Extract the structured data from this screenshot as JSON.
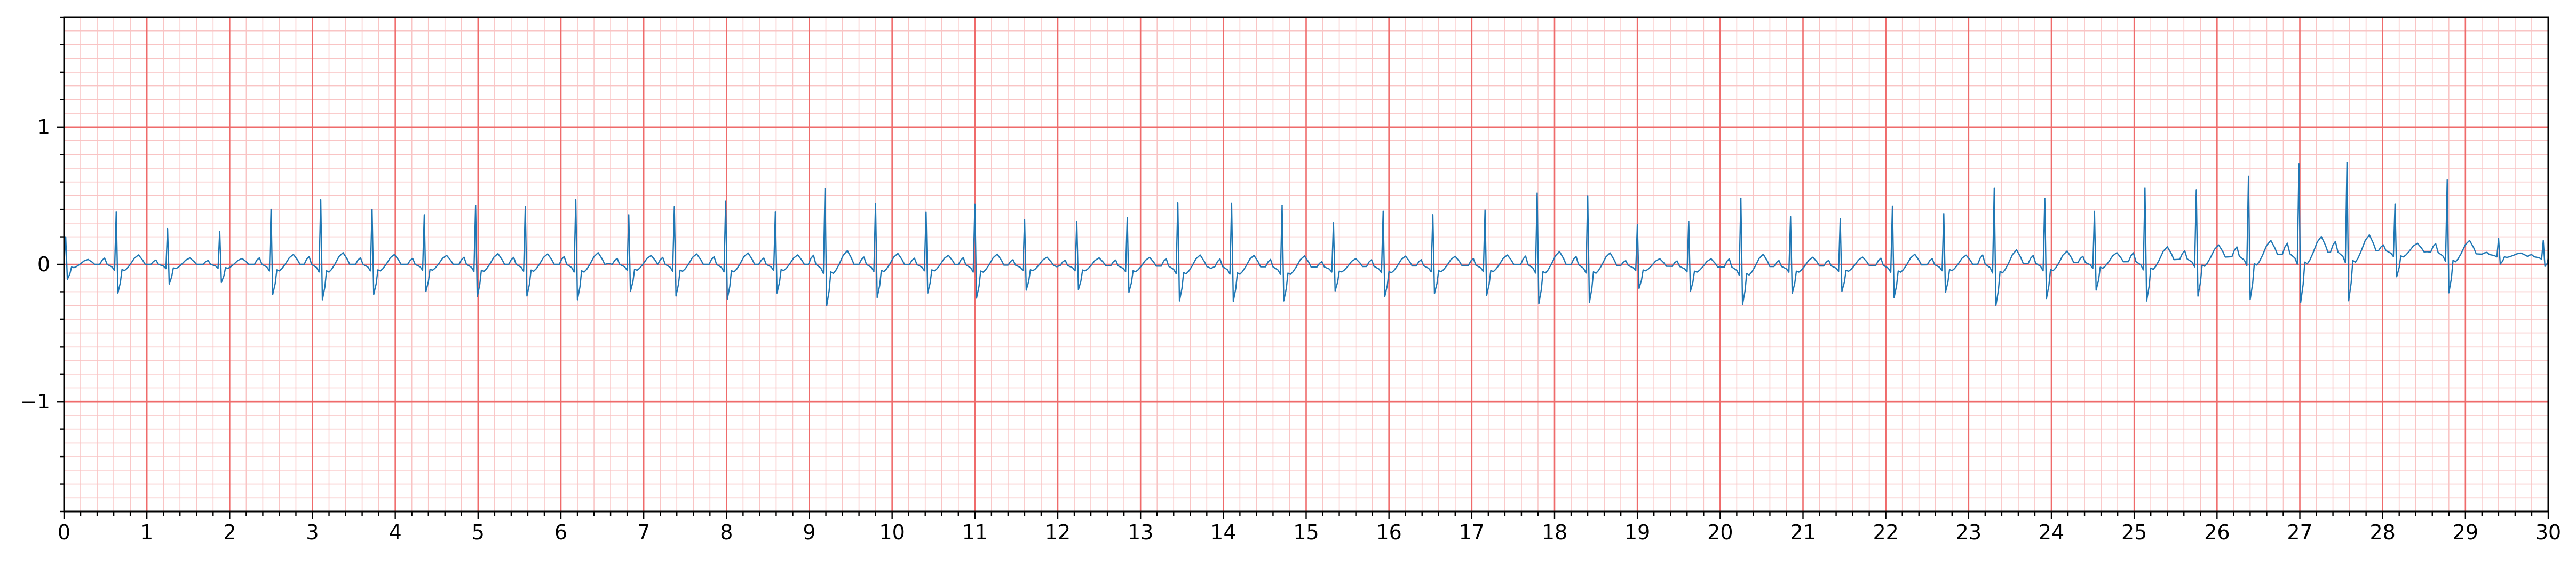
{
  "chart_data": {
    "type": "line",
    "title": "",
    "xlabel": "",
    "ylabel": "",
    "xlim": [
      0,
      30
    ],
    "ylim": [
      -1.8,
      1.8
    ],
    "grid": true,
    "x_ticks": [
      0,
      1,
      2,
      3,
      4,
      5,
      6,
      7,
      8,
      9,
      10,
      11,
      12,
      13,
      14,
      15,
      16,
      17,
      18,
      19,
      20,
      21,
      22,
      23,
      24,
      25,
      26,
      27,
      28,
      29,
      30
    ],
    "x_tick_labels": [
      "0",
      "1",
      "2",
      "3",
      "4",
      "5",
      "6",
      "7",
      "8",
      "9",
      "10",
      "11",
      "12",
      "13",
      "14",
      "15",
      "16",
      "17",
      "18",
      "19",
      "20",
      "21",
      "22",
      "23",
      "24",
      "25",
      "26",
      "27",
      "28",
      "29",
      "30"
    ],
    "y_ticks": [
      -1,
      0,
      1
    ],
    "y_tick_labels": [
      "−1",
      "0",
      "1"
    ],
    "colors": {
      "trace": "#1f77b4",
      "major_grid": "#ef6b6b",
      "minor_grid": "#f9c4c4",
      "axes": "#000000"
    },
    "beats": {
      "r_peak_times": [
        0.02,
        0.63,
        1.25,
        1.88,
        2.5,
        3.1,
        3.72,
        4.35,
        4.97,
        5.57,
        6.18,
        6.82,
        7.37,
        7.99,
        8.59,
        9.19,
        9.8,
        10.41,
        11.0,
        11.6,
        12.23,
        12.84,
        13.45,
        14.1,
        14.71,
        15.33,
        15.93,
        16.53,
        17.16,
        17.79,
        18.4,
        19.0,
        19.62,
        20.25,
        20.85,
        21.45,
        22.08,
        22.7,
        23.31,
        23.92,
        24.52,
        25.13,
        25.75,
        26.38,
        26.99,
        27.57,
        28.15,
        28.78,
        29.4,
        29.94
      ],
      "r_peak_amplitudes": [
        0.2,
        0.38,
        0.26,
        0.24,
        0.4,
        0.47,
        0.4,
        0.36,
        0.43,
        0.42,
        0.47,
        0.36,
        0.42,
        0.46,
        0.38,
        0.55,
        0.44,
        0.38,
        0.44,
        0.33,
        0.32,
        0.35,
        0.46,
        0.46,
        0.45,
        0.32,
        0.4,
        0.37,
        0.4,
        0.52,
        0.5,
        0.3,
        0.33,
        0.5,
        0.36,
        0.34,
        0.43,
        0.37,
        0.55,
        0.47,
        0.37,
        0.53,
        0.5,
        0.58,
        0.65,
        0.65,
        0.34,
        0.53,
        0.12,
        0.12
      ],
      "baseline": [
        [
          0,
          0.0
        ],
        [
          5,
          0.0
        ],
        [
          10,
          0.0
        ],
        [
          15,
          -0.02
        ],
        [
          18,
          0.0
        ],
        [
          20,
          -0.02
        ],
        [
          23,
          0.0
        ],
        [
          25,
          0.02
        ],
        [
          26,
          0.05
        ],
        [
          27,
          0.08
        ],
        [
          28,
          0.1
        ],
        [
          29,
          0.08
        ],
        [
          30,
          0.05
        ]
      ],
      "waveform_template": {
        "t_offset": [
          -0.2,
          -0.17,
          -0.14,
          -0.11,
          -0.05,
          -0.02,
          0.0,
          0.02,
          0.05,
          0.07,
          0.1,
          0.13,
          0.17,
          0.22,
          0.27,
          0.32,
          0.35
        ],
        "amplitude_fraction_of_r": [
          0.0,
          0.08,
          0.12,
          0.0,
          -0.05,
          -0.12,
          1.0,
          -0.55,
          -0.35,
          -0.1,
          -0.12,
          -0.08,
          0.0,
          0.12,
          0.18,
          0.08,
          0.0
        ]
      }
    }
  }
}
